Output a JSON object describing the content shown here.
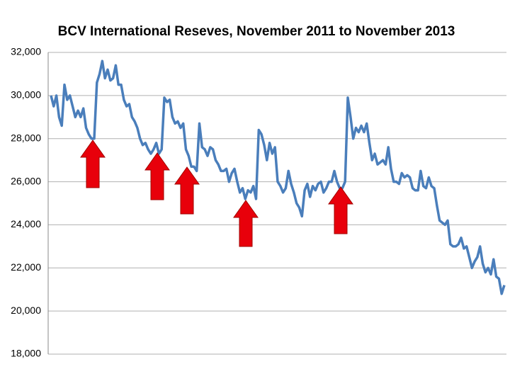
{
  "chart_data": {
    "type": "line",
    "title": "BCV International Reseves, November 2011 to November 2013",
    "ylim": [
      18000,
      32000
    ],
    "yticks": [
      {
        "value": 18000,
        "label": "18,000"
      },
      {
        "value": 20000,
        "label": "20,000"
      },
      {
        "value": 22000,
        "label": "22,000"
      },
      {
        "value": 24000,
        "label": "24,000"
      },
      {
        "value": 26000,
        "label": "26,000"
      },
      {
        "value": 28000,
        "label": "28,000"
      },
      {
        "value": 30000,
        "label": "30,000"
      },
      {
        "value": 32000,
        "label": "32,000"
      }
    ],
    "grid": true,
    "color": "#4a7ebb",
    "values": [
      30000,
      29500,
      30000,
      29000,
      28600,
      30500,
      29800,
      30000,
      29500,
      29000,
      29300,
      29000,
      29400,
      28500,
      28200,
      28000,
      28000,
      30600,
      31000,
      31600,
      30800,
      31200,
      30700,
      30800,
      31400,
      30500,
      30500,
      29800,
      29500,
      29600,
      29000,
      28800,
      28500,
      28000,
      27700,
      27800,
      27500,
      27300,
      27500,
      27800,
      27300,
      27500,
      29900,
      29700,
      29800,
      29000,
      28700,
      28800,
      28500,
      28700,
      27500,
      27200,
      26700,
      26700,
      26500,
      28700,
      27600,
      27500,
      27200,
      27600,
      27500,
      27000,
      26800,
      26500,
      26500,
      26600,
      26000,
      26400,
      26600,
      26000,
      25500,
      25700,
      25200,
      25600,
      25500,
      25800,
      25200,
      28400,
      28200,
      27700,
      27000,
      27800,
      27300,
      27600,
      26000,
      25800,
      25500,
      25700,
      26500,
      25900,
      25500,
      25000,
      24800,
      24400,
      25600,
      25900,
      25300,
      25800,
      25600,
      25900,
      26000,
      25500,
      25700,
      26000,
      26000,
      26500,
      26000,
      25700,
      25700,
      26000,
      29900,
      29000,
      28000,
      28500,
      28300,
      28600,
      28300,
      28700,
      27800,
      27000,
      27300,
      26800,
      26900,
      27000,
      26800,
      27600,
      26600,
      26000,
      26000,
      25900,
      26400,
      26200,
      26300,
      26200,
      25700,
      25600,
      25600,
      26500,
      25800,
      25700,
      26200,
      25800,
      25700,
      24900,
      24200,
      24100,
      24000,
      24200,
      23100,
      23000,
      23000,
      23100,
      23400,
      22900,
      23000,
      22500,
      22000,
      22300,
      22500,
      23000,
      22200,
      21800,
      22000,
      21700,
      22400,
      21600,
      21500,
      20800,
      21200
    ]
  }
}
